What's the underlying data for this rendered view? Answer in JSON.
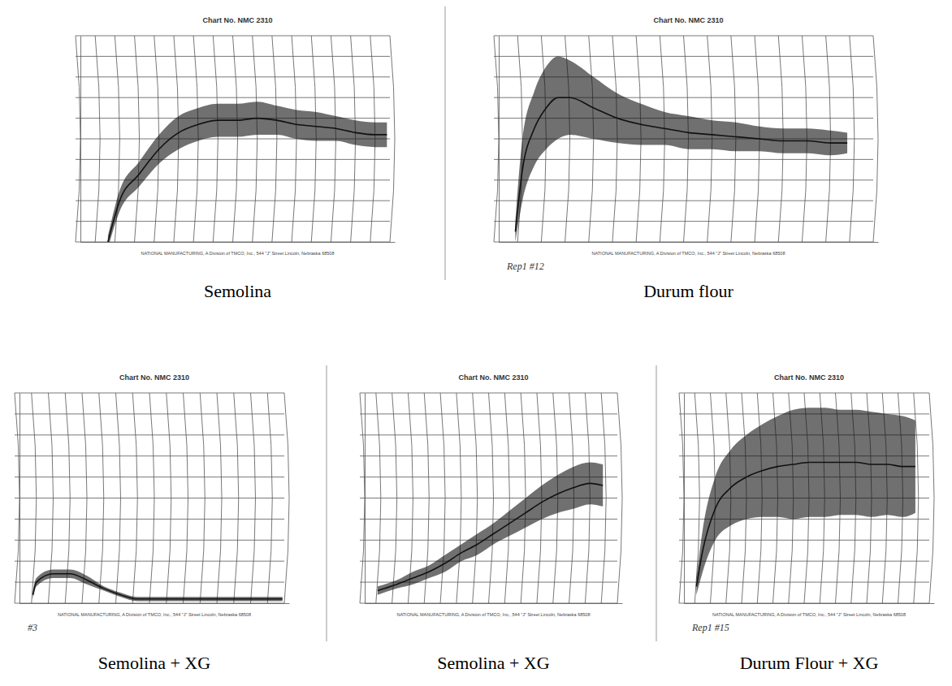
{
  "chart_data": [
    {
      "type": "line",
      "title": "Semolina",
      "subtitle": "Chart No. NMC 2310",
      "footer": "NATIONAL MANUFACTURING, A Division of TMCO, Inc., 544 \"J\" Street Lincoln, Nebraska 68508",
      "x": [
        1.4,
        2,
        3,
        4,
        5,
        6,
        7,
        8,
        9,
        10,
        11,
        12,
        13,
        14,
        15,
        15.6
      ],
      "values": [
        0,
        20,
        33,
        45,
        53,
        57,
        59,
        59,
        60,
        59,
        57,
        56,
        55,
        53,
        52,
        52
      ],
      "spread": [
        3,
        5,
        6,
        7,
        8,
        8,
        8,
        8,
        8,
        7,
        7,
        7,
        6,
        6,
        6,
        6
      ],
      "color": "#111111",
      "xlim": [
        0,
        16
      ],
      "ylim": [
        0,
        100
      ],
      "xticks": [
        0,
        1,
        2,
        3,
        4,
        5,
        6,
        7,
        8,
        9,
        10,
        11,
        12,
        13,
        14,
        15,
        16
      ],
      "yticks": [
        0,
        10,
        20,
        30,
        40,
        50,
        60,
        70,
        80,
        90,
        100
      ],
      "grid": true,
      "tick_labels": false
    },
    {
      "type": "line",
      "title": "Durum flour",
      "subtitle": "Chart No. NMC 2310",
      "footer": "NATIONAL MANUFACTURING, A Division of TMCO, Inc., 544 \"J\" Street Lincoln, Nebraska 68508",
      "annotations": [
        "Rep1 #12"
      ],
      "x": [
        0.7,
        1,
        1.5,
        2,
        2.5,
        3,
        4,
        5,
        6,
        7,
        8,
        9,
        10,
        11,
        12,
        13,
        14,
        14.7
      ],
      "values": [
        5,
        35,
        55,
        65,
        70,
        70,
        65,
        60,
        57,
        55,
        53,
        52,
        51,
        50,
        49,
        49,
        48,
        48
      ],
      "spread": [
        5,
        15,
        18,
        20,
        20,
        18,
        15,
        12,
        10,
        8,
        8,
        7,
        7,
        6,
        6,
        6,
        6,
        5
      ],
      "color": "#111111",
      "xlim": [
        0,
        16
      ],
      "ylim": [
        0,
        100
      ],
      "xticks": [
        0,
        1,
        2,
        3,
        4,
        5,
        6,
        7,
        8,
        9,
        10,
        11,
        12,
        13,
        14,
        15,
        16
      ],
      "yticks": [
        0,
        10,
        20,
        30,
        40,
        50,
        60,
        70,
        80,
        90,
        100
      ],
      "grid": true,
      "tick_labels": false
    },
    {
      "type": "line",
      "title": "Semolina + XG",
      "subtitle": "Chart No. NMC 2310",
      "footer": "NATIONAL MANUFACTURING, A Division of TMCO, Inc., 544 \"J\" Street Lincoln, Nebraska 68508",
      "annotations": [
        "#3"
      ],
      "x": [
        0.8,
        1,
        2,
        3,
        4,
        5,
        6,
        7,
        8,
        9,
        10,
        11,
        12,
        13,
        14,
        15,
        15.6
      ],
      "values": [
        4,
        10,
        14,
        14,
        11,
        7,
        4,
        2,
        2,
        2,
        2,
        2,
        2,
        2,
        2,
        2,
        2
      ],
      "spread": [
        2,
        2,
        2,
        2,
        2,
        1,
        1,
        1,
        1,
        1,
        1,
        1,
        1,
        1,
        1,
        1,
        1
      ],
      "color": "#111111",
      "xlim": [
        0,
        16
      ],
      "ylim": [
        0,
        100
      ],
      "xticks": [
        0,
        1,
        2,
        3,
        4,
        5,
        6,
        7,
        8,
        9,
        10,
        11,
        12,
        13,
        14,
        15,
        16
      ],
      "yticks": [
        0,
        10,
        20,
        30,
        40,
        50,
        60,
        70,
        80,
        90,
        100
      ],
      "grid": true,
      "tick_labels": false
    },
    {
      "type": "line",
      "title": "Semolina + XG",
      "subtitle": "Chart No. NMC 2310",
      "footer": "NATIONAL MANUFACTURING, A Division of TMCO, Inc., 544 \"J\" Street Lincoln, Nebraska 68508",
      "x": [
        0.8,
        2,
        3,
        4,
        5,
        6,
        7,
        8,
        9,
        10,
        11,
        12,
        13,
        14,
        14.8
      ],
      "values": [
        6,
        9,
        12,
        15,
        19,
        24,
        28,
        33,
        38,
        43,
        48,
        52,
        55,
        57,
        56
      ],
      "spread": [
        2,
        2,
        3,
        3,
        4,
        4,
        5,
        5,
        6,
        7,
        8,
        9,
        10,
        10,
        10
      ],
      "color": "#111111",
      "xlim": [
        0,
        16
      ],
      "ylim": [
        0,
        100
      ],
      "xticks": [
        0,
        1,
        2,
        3,
        4,
        5,
        6,
        7,
        8,
        9,
        10,
        11,
        12,
        13,
        14,
        15,
        16
      ],
      "yticks": [
        0,
        10,
        20,
        30,
        40,
        50,
        60,
        70,
        80,
        90,
        100
      ],
      "grid": true,
      "tick_labels": false
    },
    {
      "type": "line",
      "title": "Durum Flour + XG",
      "subtitle": "Chart No. NMC 2310",
      "footer": "NATIONAL MANUFACTURING, A Division of TMCO, Inc., 544 \"J\" Street Lincoln, Nebraska 68508",
      "annotations": [
        "Rep1 #15"
      ],
      "x": [
        0.8,
        1.2,
        2,
        3,
        4,
        5,
        6,
        7,
        8,
        9,
        10,
        11,
        12,
        13,
        14,
        14.8
      ],
      "values": [
        8,
        25,
        45,
        55,
        60,
        63,
        65,
        66,
        67,
        67,
        67,
        67,
        66,
        66,
        65,
        65
      ],
      "spread": [
        4,
        10,
        15,
        18,
        20,
        22,
        24,
        26,
        26,
        26,
        25,
        25,
        25,
        24,
        24,
        22
      ],
      "color": "#111111",
      "xlim": [
        0,
        16
      ],
      "ylim": [
        0,
        100
      ],
      "xticks": [
        0,
        1,
        2,
        3,
        4,
        5,
        6,
        7,
        8,
        9,
        10,
        11,
        12,
        13,
        14,
        15,
        16
      ],
      "yticks": [
        0,
        10,
        20,
        30,
        40,
        50,
        60,
        70,
        80,
        90,
        100
      ],
      "grid": true,
      "tick_labels": false
    }
  ]
}
